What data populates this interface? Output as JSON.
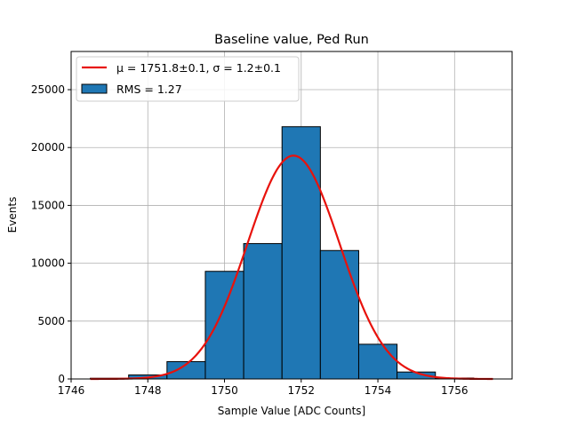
{
  "chart_data": {
    "type": "bar",
    "title": "Baseline value, Ped Run",
    "xlabel": "Sample Value [ADC Counts]",
    "ylabel": "Events",
    "xlim": [
      1746,
      1757.5
    ],
    "ylim": [
      0,
      28300
    ],
    "xticks": [
      1746,
      1748,
      1750,
      1752,
      1754,
      1756
    ],
    "yticks": [
      0,
      5000,
      10000,
      15000,
      20000,
      25000
    ],
    "grid": true,
    "legend_position": "top-left",
    "histogram": {
      "name": "RMS = 1.27",
      "color": "#1f77b4",
      "edgecolor": "#000000",
      "bins": [
        {
          "x0": 1746.5,
          "x1": 1747.5,
          "count": 60
        },
        {
          "x0": 1747.5,
          "x1": 1748.5,
          "count": 350
        },
        {
          "x0": 1748.5,
          "x1": 1749.5,
          "count": 1500
        },
        {
          "x0": 1749.5,
          "x1": 1750.5,
          "count": 9300
        },
        {
          "x0": 1750.5,
          "x1": 1751.5,
          "count": 11700
        },
        {
          "x0": 1751.5,
          "x1": 1752.5,
          "count": 21800
        },
        {
          "x0": 1752.5,
          "x1": 1753.5,
          "count": 11100
        },
        {
          "x0": 1753.5,
          "x1": 1754.5,
          "count": 3000
        },
        {
          "x0": 1754.5,
          "x1": 1755.5,
          "count": 600
        },
        {
          "x0": 1755.5,
          "x1": 1756.5,
          "count": 80
        }
      ]
    },
    "fit": {
      "name": "μ = 1751.8±0.1, σ = 1.2±0.1",
      "color": "#e8120c",
      "mu": 1751.8,
      "sigma": 1.2,
      "amplitude": 19300,
      "x_range": [
        1746.5,
        1757.0
      ]
    }
  }
}
